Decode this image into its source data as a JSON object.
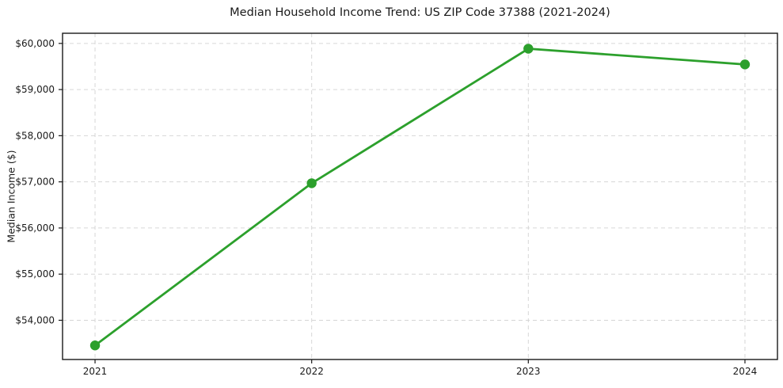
{
  "chart_data": {
    "type": "line",
    "title": "Median Household Income Trend: US ZIP Code 37388 (2021-2024)",
    "xlabel": "",
    "ylabel": "Median Income ($)",
    "x": [
      "2021",
      "2022",
      "2023",
      "2024"
    ],
    "values": [
      53455,
      56970,
      59885,
      59545
    ],
    "y_ticks": [
      {
        "value": 54000,
        "label": "$54,000"
      },
      {
        "value": 55000,
        "label": "$55,000"
      },
      {
        "value": 56000,
        "label": "$56,000"
      },
      {
        "value": 57000,
        "label": "$57,000"
      },
      {
        "value": 58000,
        "label": "$58,000"
      },
      {
        "value": 59000,
        "label": "$59,000"
      },
      {
        "value": 60000,
        "label": "$60,000"
      }
    ],
    "ylim": [
      53150,
      60220
    ],
    "grid": "dashed",
    "legend_position": "none",
    "line_color": "#2ca02c",
    "marker": "circle",
    "grid_color": "#d6d6d6",
    "axis_color": "#1a1a1a",
    "tick_label_color": "#1a1a1a",
    "background": "#ffffff"
  }
}
